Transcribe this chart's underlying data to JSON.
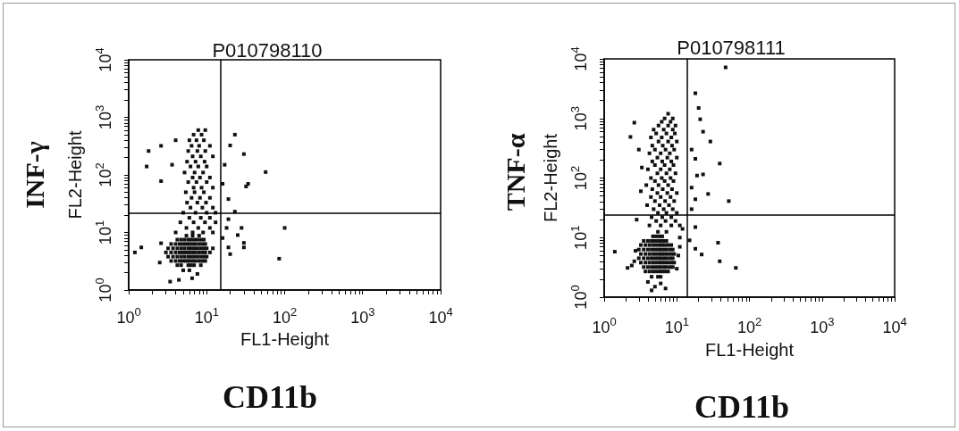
{
  "chart_data": [
    {
      "type": "scatter",
      "title": "P010798110",
      "xlabel": "FL1-Height",
      "ylabel": "FL2-Height",
      "annotations": [
        "INF-γ",
        "CD11b"
      ],
      "log": "xy",
      "marker": "square",
      "color": "#111111",
      "xlim": [
        1,
        10000
      ],
      "ylim": [
        1,
        10000
      ],
      "xticks": [
        {
          "value": 1,
          "label": "10$^{0}$"
        },
        {
          "value": 2,
          "label": null
        },
        {
          "value": 3,
          "label": null
        },
        {
          "value": 4,
          "label": null
        },
        {
          "value": 5,
          "label": null
        },
        {
          "value": 6,
          "label": null
        },
        {
          "value": 7,
          "label": null
        },
        {
          "value": 8,
          "label": null
        },
        {
          "value": 9,
          "label": null
        },
        {
          "value": 10,
          "label": "10$^{1}$"
        },
        {
          "value": 20,
          "label": null
        },
        {
          "value": 30,
          "label": null
        },
        {
          "value": 40,
          "label": null
        },
        {
          "value": 50,
          "label": null
        },
        {
          "value": 60,
          "label": null
        },
        {
          "value": 70,
          "label": null
        },
        {
          "value": 80,
          "label": null
        },
        {
          "value": 90,
          "label": null
        },
        {
          "value": 100,
          "label": "10$^{2}$"
        },
        {
          "value": 200,
          "label": null
        },
        {
          "value": 300,
          "label": null
        },
        {
          "value": 400,
          "label": null
        },
        {
          "value": 500,
          "label": null
        },
        {
          "value": 600,
          "label": null
        },
        {
          "value": 700,
          "label": null
        },
        {
          "value": 800,
          "label": null
        },
        {
          "value": 900,
          "label": null
        },
        {
          "value": 1000,
          "label": "10$^{3}$"
        },
        {
          "value": 2000,
          "label": null
        },
        {
          "value": 3000,
          "label": null
        },
        {
          "value": 4000,
          "label": null
        },
        {
          "value": 5000,
          "label": null
        },
        {
          "value": 6000,
          "label": null
        },
        {
          "value": 7000,
          "label": null
        },
        {
          "value": 8000,
          "label": null
        },
        {
          "value": 9000,
          "label": null
        },
        {
          "value": 10000,
          "label": "10$^{4}$"
        }
      ],
      "yticks": [
        {
          "value": 1,
          "label": "10$^{0}$"
        },
        {
          "value": 2,
          "label": null
        },
        {
          "value": 3,
          "label": null
        },
        {
          "value": 4,
          "label": null
        },
        {
          "value": 5,
          "label": null
        },
        {
          "value": 6,
          "label": null
        },
        {
          "value": 7,
          "label": null
        },
        {
          "value": 8,
          "label": null
        },
        {
          "value": 9,
          "label": null
        },
        {
          "value": 10,
          "label": "10$^{1}$"
        },
        {
          "value": 20,
          "label": null
        },
        {
          "value": 30,
          "label": null
        },
        {
          "value": 40,
          "label": null
        },
        {
          "value": 50,
          "label": null
        },
        {
          "value": 60,
          "label": null
        },
        {
          "value": 70,
          "label": null
        },
        {
          "value": 80,
          "label": null
        },
        {
          "value": 90,
          "label": null
        },
        {
          "value": 100,
          "label": "10$^{2}$"
        },
        {
          "value": 200,
          "label": null
        },
        {
          "value": 300,
          "label": null
        },
        {
          "value": 400,
          "label": null
        },
        {
          "value": 500,
          "label": null
        },
        {
          "value": 600,
          "label": null
        },
        {
          "value": 700,
          "label": null
        },
        {
          "value": 800,
          "label": null
        },
        {
          "value": 900,
          "label": null
        },
        {
          "value": 1000,
          "label": "10$^{3}$"
        },
        {
          "value": 2000,
          "label": null
        },
        {
          "value": 3000,
          "label": null
        },
        {
          "value": 4000,
          "label": null
        },
        {
          "value": 5000,
          "label": null
        },
        {
          "value": 6000,
          "label": null
        },
        {
          "value": 7000,
          "label": null
        },
        {
          "value": 8000,
          "label": null
        },
        {
          "value": 9000,
          "label": null
        },
        {
          "value": 10000,
          "label": "10$^{4}$"
        }
      ],
      "ref_lines": [
        {
          "axis": "x",
          "value": 15,
          "color": "#000000"
        },
        {
          "axis": "y",
          "value": 22,
          "color": "#000000"
        }
      ],
      "x": [
        5,
        6,
        4.2,
        4.7,
        5.8,
        6.3,
        6.9,
        8.4,
        3.5,
        4,
        4.5,
        5,
        5.5,
        6,
        6.6,
        7.2,
        8,
        8.8,
        9.6,
        3.2,
        3.7,
        4.2,
        4.7,
        5.2,
        5.8,
        6.3,
        6.9,
        7.6,
        8.4,
        9.2,
        10,
        3,
        3.5,
        4,
        4.5,
        5,
        5.5,
        6,
        6.6,
        7.2,
        8,
        8.8,
        9.6,
        11,
        3.2,
        3.7,
        4.2,
        4.7,
        5.2,
        5.8,
        6.3,
        6.9,
        7.6,
        8.4,
        9.2,
        10,
        12,
        3.5,
        4,
        4.5,
        5,
        5.5,
        6,
        6.6,
        7.2,
        8,
        8.8,
        9.6,
        4.2,
        4.7,
        5.2,
        5.8,
        6.3,
        6.9,
        7.6,
        8.4,
        9.2,
        5.5,
        6.6,
        8,
        4,
        6.6,
        9,
        12,
        5.5,
        7.8,
        11,
        4.6,
        6.8,
        9.5,
        13,
        6,
        8.4,
        11,
        5,
        7.2,
        10,
        13,
        6.2,
        8.8,
        12,
        5.6,
        7.6,
        9.8,
        6.4,
        8.2,
        11,
        5.4,
        7,
        9.2,
        6.8,
        8.6,
        12,
        5.8,
        7.4,
        10,
        6.6,
        8.2,
        11,
        5.2,
        7,
        9,
        6.2,
        7.8,
        10,
        5.6,
        7.2,
        9.4,
        6.6,
        8.4,
        12,
        5.8,
        7.6,
        9.6,
        6.4,
        8,
        11,
        6,
        7.4,
        9.2,
        6.8,
        8.6,
        7.8,
        9.6,
        1.8,
        1.7,
        2.6,
        2.6,
        1.45,
        1.2,
        3.6,
        4,
        2.5,
        2.6,
        3.4,
        4.4,
        6.5,
        7.6,
        23,
        30,
        57,
        32,
        34,
        20,
        19,
        23,
        28,
        30,
        30,
        19,
        20,
        100,
        85,
        17,
        16,
        18,
        16,
        25,
        19
      ],
      "values": [
        2.2,
        2.2,
        2.7,
        2.7,
        2.7,
        2.7,
        2.7,
        2.7,
        3.2,
        3.2,
        3.2,
        3.2,
        3.2,
        3.2,
        3.2,
        3.2,
        3.2,
        3.2,
        3.2,
        3.8,
        3.8,
        3.8,
        3.8,
        3.8,
        3.8,
        3.8,
        3.8,
        3.8,
        3.8,
        3.8,
        3.8,
        4.5,
        4.5,
        4.5,
        4.5,
        4.5,
        4.5,
        4.5,
        4.5,
        4.5,
        4.5,
        4.5,
        4.5,
        4.5,
        5.3,
        5.3,
        5.3,
        5.3,
        5.3,
        5.3,
        5.3,
        5.3,
        5.3,
        5.3,
        5.3,
        5.3,
        5.3,
        6.3,
        6.3,
        6.3,
        6.3,
        6.3,
        6.3,
        6.3,
        6.3,
        6.3,
        6.3,
        6.3,
        7.5,
        7.5,
        7.5,
        7.5,
        7.5,
        7.5,
        7.5,
        7.5,
        7.5,
        8.8,
        8.8,
        8.8,
        10,
        10,
        10,
        10,
        12,
        12,
        12,
        15,
        15,
        15,
        15,
        18,
        18,
        18,
        22,
        22,
        22,
        22,
        27,
        27,
        27,
        33,
        33,
        33,
        40,
        40,
        40,
        50,
        50,
        50,
        60,
        60,
        60,
        75,
        75,
        75,
        90,
        90,
        90,
        110,
        110,
        110,
        140,
        140,
        140,
        170,
        170,
        170,
        210,
        210,
        210,
        260,
        260,
        260,
        320,
        320,
        320,
        400,
        400,
        400,
        500,
        500,
        600,
        600,
        260,
        140,
        320,
        78,
        5.5,
        4.5,
        150,
        400,
        3,
        6.5,
        1.4,
        1.5,
        1.6,
        1.9,
        500,
        230,
        112,
        63,
        70,
        325,
        38,
        23,
        12,
        6.6,
        5.5,
        5.5,
        4.2,
        12,
        3.5,
        150,
        70,
        12,
        8,
        9,
        17
      ]
    },
    {
      "type": "scatter",
      "title": "P010798111",
      "xlabel": "FL1-Height",
      "ylabel": "FL2-Height",
      "annotations": [
        "TNF-α",
        "CD11b"
      ],
      "log": "xy",
      "marker": "square",
      "color": "#111111",
      "xlim": [
        1,
        10000
      ],
      "ylim": [
        1,
        10000
      ],
      "xticks": [
        {
          "value": 1,
          "label": "10$^{0}$"
        },
        {
          "value": 2,
          "label": null
        },
        {
          "value": 3,
          "label": null
        },
        {
          "value": 4,
          "label": null
        },
        {
          "value": 5,
          "label": null
        },
        {
          "value": 6,
          "label": null
        },
        {
          "value": 7,
          "label": null
        },
        {
          "value": 8,
          "label": null
        },
        {
          "value": 9,
          "label": null
        },
        {
          "value": 10,
          "label": "10$^{1}$"
        },
        {
          "value": 20,
          "label": null
        },
        {
          "value": 30,
          "label": null
        },
        {
          "value": 40,
          "label": null
        },
        {
          "value": 50,
          "label": null
        },
        {
          "value": 60,
          "label": null
        },
        {
          "value": 70,
          "label": null
        },
        {
          "value": 80,
          "label": null
        },
        {
          "value": 90,
          "label": null
        },
        {
          "value": 100,
          "label": "10$^{2}$"
        },
        {
          "value": 200,
          "label": null
        },
        {
          "value": 300,
          "label": null
        },
        {
          "value": 400,
          "label": null
        },
        {
          "value": 500,
          "label": null
        },
        {
          "value": 600,
          "label": null
        },
        {
          "value": 700,
          "label": null
        },
        {
          "value": 800,
          "label": null
        },
        {
          "value": 900,
          "label": null
        },
        {
          "value": 1000,
          "label": "10$^{3}$"
        },
        {
          "value": 2000,
          "label": null
        },
        {
          "value": 3000,
          "label": null
        },
        {
          "value": 4000,
          "label": null
        },
        {
          "value": 5000,
          "label": null
        },
        {
          "value": 6000,
          "label": null
        },
        {
          "value": 7000,
          "label": null
        },
        {
          "value": 8000,
          "label": null
        },
        {
          "value": 9000,
          "label": null
        },
        {
          "value": 10000,
          "label": "10$^{4}$"
        }
      ],
      "yticks": [
        {
          "value": 1,
          "label": "10$^{0}$"
        },
        {
          "value": 2,
          "label": null
        },
        {
          "value": 3,
          "label": null
        },
        {
          "value": 4,
          "label": null
        },
        {
          "value": 5,
          "label": null
        },
        {
          "value": 6,
          "label": null
        },
        {
          "value": 7,
          "label": null
        },
        {
          "value": 8,
          "label": null
        },
        {
          "value": 9,
          "label": null
        },
        {
          "value": 10,
          "label": "10$^{1}$"
        },
        {
          "value": 20,
          "label": null
        },
        {
          "value": 30,
          "label": null
        },
        {
          "value": 40,
          "label": null
        },
        {
          "value": 50,
          "label": null
        },
        {
          "value": 60,
          "label": null
        },
        {
          "value": 70,
          "label": null
        },
        {
          "value": 80,
          "label": null
        },
        {
          "value": 90,
          "label": null
        },
        {
          "value": 100,
          "label": "10$^{2}$"
        },
        {
          "value": 200,
          "label": null
        },
        {
          "value": 300,
          "label": null
        },
        {
          "value": 400,
          "label": null
        },
        {
          "value": 500,
          "label": null
        },
        {
          "value": 600,
          "label": null
        },
        {
          "value": 700,
          "label": null
        },
        {
          "value": 800,
          "label": null
        },
        {
          "value": 900,
          "label": null
        },
        {
          "value": 1000,
          "label": "10$^{3}$"
        },
        {
          "value": 2000,
          "label": null
        },
        {
          "value": 3000,
          "label": null
        },
        {
          "value": 4000,
          "label": null
        },
        {
          "value": 5000,
          "label": null
        },
        {
          "value": 6000,
          "label": null
        },
        {
          "value": 7000,
          "label": null
        },
        {
          "value": 8000,
          "label": null
        },
        {
          "value": 9000,
          "label": null
        },
        {
          "value": 10000,
          "label": "10$^{4}$"
        }
      ],
      "ref_lines": [
        {
          "axis": "x",
          "value": 14,
          "color": "#000000"
        },
        {
          "axis": "y",
          "value": 24,
          "color": "#000000"
        }
      ],
      "x": [
        4.5,
        5.5,
        6,
        3.7,
        4.2,
        4.7,
        5.2,
        5.8,
        6.3,
        6.9,
        7.6,
        3.5,
        4,
        4.5,
        5,
        5.5,
        6,
        6.6,
        7.2,
        8,
        8.8,
        3.2,
        3.7,
        4.2,
        4.7,
        5.2,
        5.8,
        6.3,
        6.9,
        7.6,
        8.4,
        9.2,
        3,
        3.5,
        4,
        4.5,
        5,
        5.5,
        6,
        6.6,
        7.2,
        8,
        8.8,
        3.2,
        3.7,
        4.2,
        4.7,
        5.2,
        5.8,
        6.3,
        6.9,
        7.6,
        8.4,
        9.2,
        3,
        3.5,
        4,
        4.5,
        5,
        5.5,
        6,
        6.6,
        7.2,
        8,
        8.8,
        3.2,
        3.7,
        4.2,
        4.7,
        5.2,
        5.8,
        6.3,
        6.9,
        7.6,
        8.4,
        3.5,
        4,
        4.5,
        5,
        5.5,
        6,
        6.6,
        7.2,
        4.7,
        5.2,
        5.8,
        6.3,
        5.5,
        7.2,
        4.2,
        6,
        8.4,
        11,
        5.2,
        7,
        9.6,
        4.5,
        6.3,
        8.4,
        5.5,
        7.2,
        10,
        4.8,
        6.6,
        8.8,
        3.9,
        5.8,
        7.8,
        5,
        6.9,
        9.2,
        4.4,
        6,
        8.2,
        5.4,
        7.4,
        10,
        4.6,
        6.4,
        8.6,
        3.8,
        5.6,
        7.6,
        5,
        6.8,
        9,
        4.4,
        6.2,
        8.2,
        5.4,
        7.2,
        9.6,
        4,
        6,
        8,
        5,
        6.8,
        9,
        4.6,
        6.3,
        8.4,
        5.4,
        7.4,
        10,
        4.2,
        6,
        8,
        5,
        7,
        9.2,
        4.6,
        6.4,
        8.6,
        5.6,
        7.6,
        10,
        4.4,
        6.2,
        8.4,
        5.2,
        7.2,
        9.4,
        4.8,
        6.6,
        8.8,
        5.6,
        7.6,
        9.6,
        6.2,
        8.2,
        6.8,
        8.8,
        7.6,
        2.6,
        2.3,
        1.4,
        2.1,
        3,
        3.2,
        2.8,
        3.3,
        4,
        5,
        6,
        7,
        4.5,
        2.6,
        2.7,
        2.4,
        10.5,
        11,
        10,
        11,
        12,
        47,
        18,
        20,
        21,
        23,
        29,
        39,
        23,
        27,
        52,
        18,
        19,
        16,
        18,
        37,
        65,
        39,
        22,
        18,
        16,
        15,
        18,
        16
      ],
      "values": [
        2.2,
        2.2,
        2.2,
        2.7,
        2.7,
        2.7,
        2.7,
        2.7,
        2.7,
        2.7,
        2.7,
        3.2,
        3.2,
        3.2,
        3.2,
        3.2,
        3.2,
        3.2,
        3.2,
        3.2,
        3.2,
        3.8,
        3.8,
        3.8,
        3.8,
        3.8,
        3.8,
        3.8,
        3.8,
        3.8,
        3.8,
        3.8,
        4.5,
        4.5,
        4.5,
        4.5,
        4.5,
        4.5,
        4.5,
        4.5,
        4.5,
        4.5,
        4.5,
        5.3,
        5.3,
        5.3,
        5.3,
        5.3,
        5.3,
        5.3,
        5.3,
        5.3,
        5.3,
        5.3,
        6.3,
        6.3,
        6.3,
        6.3,
        6.3,
        6.3,
        6.3,
        6.3,
        6.3,
        6.3,
        6.3,
        7.5,
        7.5,
        7.5,
        7.5,
        7.5,
        7.5,
        7.5,
        7.5,
        7.5,
        7.5,
        8.8,
        8.8,
        8.8,
        8.8,
        8.8,
        8.8,
        8.8,
        8.8,
        10.5,
        10.5,
        10.5,
        10.5,
        12.5,
        12.5,
        16,
        16,
        16,
        16,
        19,
        19,
        19,
        22,
        22,
        22,
        26,
        26,
        26,
        30,
        30,
        30,
        35,
        35,
        35,
        41,
        41,
        41,
        48,
        48,
        48,
        56,
        56,
        56,
        65,
        65,
        65,
        76,
        76,
        76,
        89,
        89,
        89,
        100,
        100,
        100,
        120,
        120,
        120,
        140,
        140,
        140,
        165,
        165,
        165,
        190,
        190,
        190,
        220,
        220,
        220,
        260,
        260,
        260,
        300,
        300,
        300,
        350,
        350,
        350,
        410,
        410,
        410,
        480,
        480,
        480,
        560,
        560,
        560,
        650,
        650,
        650,
        760,
        760,
        760,
        880,
        880,
        1000,
        1000,
        1200,
        850,
        490,
        5.8,
        3.1,
        300,
        60,
        20,
        150,
        1.8,
        1.5,
        1.7,
        1.4,
        1.3,
        4,
        6,
        3.4,
        5,
        7,
        3,
        10,
        14,
        7200,
        2650,
        1500,
        970,
        600,
        410,
        175,
        115,
        54,
        41,
        210,
        110,
        69,
        44,
        8.2,
        3.1,
        4,
        5.2,
        15,
        30,
        9,
        6.5,
        300
      ]
    }
  ]
}
